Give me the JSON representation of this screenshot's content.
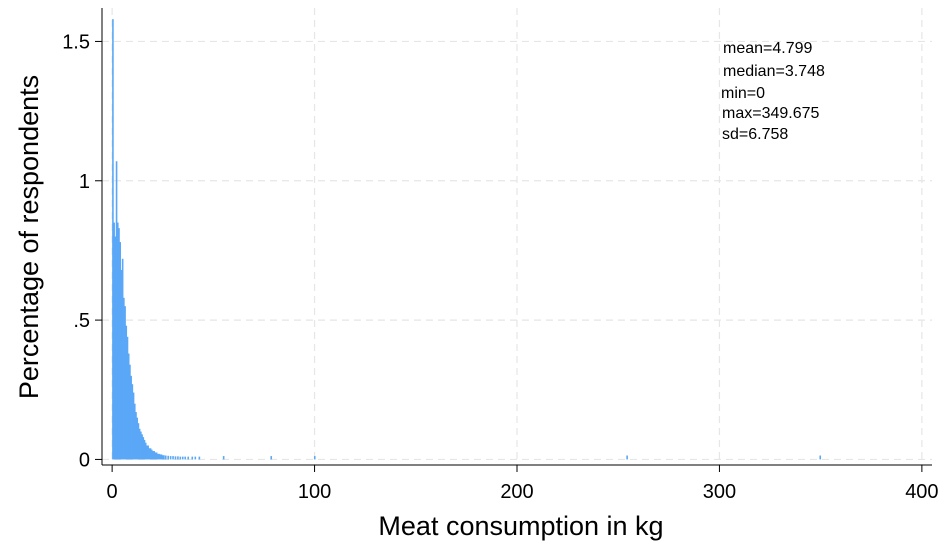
{
  "chart_data": {
    "type": "bar",
    "xlabel": "Meat consumption in kg",
    "ylabel": "Percentage of respondents",
    "xlim": [
      -5,
      405
    ],
    "ylim": [
      -0.02,
      1.62
    ],
    "x_ticks": [
      0,
      100,
      200,
      300,
      400
    ],
    "x_tick_labels": [
      "0",
      "100",
      "200",
      "300",
      "400"
    ],
    "y_ticks": [
      0,
      0.5,
      1,
      1.5
    ],
    "y_tick_labels": [
      "0",
      ".5",
      "1",
      "1.5"
    ],
    "grid": true,
    "bar_color": "#5aa7f7",
    "bin_width": 0.6,
    "bins": [
      {
        "x": 0.3,
        "y": 1.58
      },
      {
        "x": 0.9,
        "y": 0.85
      },
      {
        "x": 1.5,
        "y": 0.8
      },
      {
        "x": 2.1,
        "y": 1.07
      },
      {
        "x": 2.7,
        "y": 0.85
      },
      {
        "x": 3.3,
        "y": 0.83
      },
      {
        "x": 3.9,
        "y": 0.78
      },
      {
        "x": 4.5,
        "y": 0.68
      },
      {
        "x": 5.1,
        "y": 0.72
      },
      {
        "x": 5.7,
        "y": 0.58
      },
      {
        "x": 6.3,
        "y": 0.55
      },
      {
        "x": 6.9,
        "y": 0.48
      },
      {
        "x": 7.5,
        "y": 0.44
      },
      {
        "x": 8.1,
        "y": 0.38
      },
      {
        "x": 8.7,
        "y": 0.34
      },
      {
        "x": 9.3,
        "y": 0.3
      },
      {
        "x": 9.9,
        "y": 0.27
      },
      {
        "x": 10.5,
        "y": 0.24
      },
      {
        "x": 11.1,
        "y": 0.2
      },
      {
        "x": 11.7,
        "y": 0.17
      },
      {
        "x": 12.3,
        "y": 0.15
      },
      {
        "x": 12.9,
        "y": 0.13
      },
      {
        "x": 13.5,
        "y": 0.11
      },
      {
        "x": 14.1,
        "y": 0.1
      },
      {
        "x": 14.7,
        "y": 0.09
      },
      {
        "x": 15.3,
        "y": 0.08
      },
      {
        "x": 15.9,
        "y": 0.07
      },
      {
        "x": 16.5,
        "y": 0.06
      },
      {
        "x": 17.1,
        "y": 0.05
      },
      {
        "x": 17.7,
        "y": 0.05
      },
      {
        "x": 18.3,
        "y": 0.04
      },
      {
        "x": 18.9,
        "y": 0.04
      },
      {
        "x": 19.5,
        "y": 0.035
      },
      {
        "x": 20.1,
        "y": 0.03
      },
      {
        "x": 20.7,
        "y": 0.03
      },
      {
        "x": 21.3,
        "y": 0.025
      },
      {
        "x": 21.9,
        "y": 0.025
      },
      {
        "x": 22.5,
        "y": 0.02
      },
      {
        "x": 23.1,
        "y": 0.02
      },
      {
        "x": 23.7,
        "y": 0.018
      },
      {
        "x": 24.3,
        "y": 0.018
      },
      {
        "x": 24.9,
        "y": 0.015
      },
      {
        "x": 25.5,
        "y": 0.015
      },
      {
        "x": 26.4,
        "y": 0.014
      },
      {
        "x": 27.6,
        "y": 0.013
      },
      {
        "x": 28.8,
        "y": 0.012
      },
      {
        "x": 30.0,
        "y": 0.012
      },
      {
        "x": 31.2,
        "y": 0.011
      },
      {
        "x": 32.4,
        "y": 0.011
      },
      {
        "x": 33.6,
        "y": 0.01
      },
      {
        "x": 34.8,
        "y": 0.01
      },
      {
        "x": 36.0,
        "y": 0.01
      },
      {
        "x": 37.5,
        "y": 0.01
      },
      {
        "x": 39.5,
        "y": 0.01
      },
      {
        "x": 41.0,
        "y": 0.01
      },
      {
        "x": 43.0,
        "y": 0.01
      },
      {
        "x": 55.0,
        "y": 0.012
      },
      {
        "x": 78.5,
        "y": 0.012
      },
      {
        "x": 100.0,
        "y": 0.012
      },
      {
        "x": 254.3,
        "y": 0.014
      },
      {
        "x": 349.7,
        "y": 0.014
      }
    ],
    "annotations": [
      "mean=4.799",
      "median=3.748",
      "min=0",
      "max=349.675",
      "sd=6.758"
    ]
  }
}
